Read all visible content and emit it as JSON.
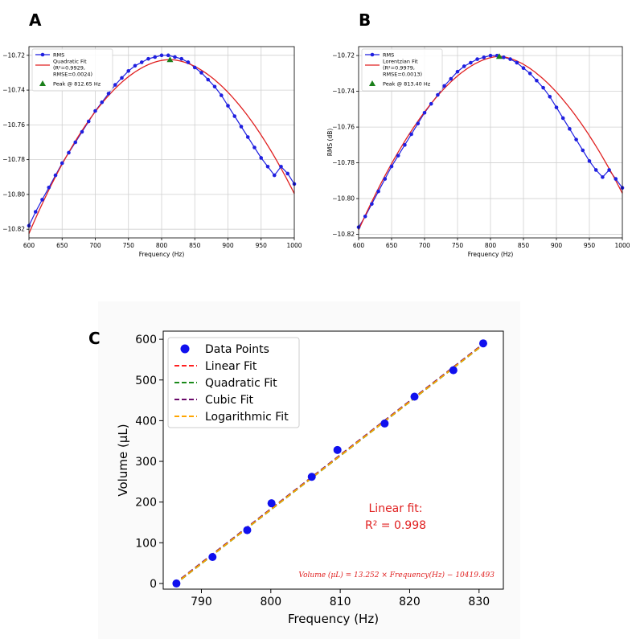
{
  "panels": [
    {
      "letter": "A"
    },
    {
      "letter": "B"
    },
    {
      "letter": "C"
    }
  ],
  "chart_data": [
    {
      "id": "A",
      "type": "line",
      "xlabel": "Frequency (Hz)",
      "ylabel": "",
      "xlim": [
        600,
        1000
      ],
      "ylim": [
        -10.825,
        -10.715
      ],
      "xticks": [
        600,
        650,
        700,
        750,
        800,
        850,
        900,
        950,
        1000
      ],
      "yticks": [
        -10.82,
        -10.8,
        -10.78,
        -10.76,
        -10.74,
        -10.72
      ],
      "grid": true,
      "legend_placement": "top-left",
      "series": [
        {
          "name": "RMS",
          "kind": "line-markers",
          "color": "#1f1fe0",
          "x": [
            600,
            610,
            620,
            630,
            640,
            650,
            660,
            670,
            680,
            690,
            700,
            710,
            720,
            730,
            740,
            750,
            760,
            770,
            780,
            790,
            800,
            810,
            820,
            830,
            840,
            850,
            860,
            870,
            880,
            890,
            900,
            910,
            920,
            930,
            940,
            950,
            960,
            970,
            980,
            990,
            1000
          ],
          "y": [
            -10.818,
            -10.81,
            -10.803,
            -10.796,
            -10.789,
            -10.782,
            -10.776,
            -10.77,
            -10.764,
            -10.758,
            -10.752,
            -10.747,
            -10.742,
            -10.737,
            -10.733,
            -10.729,
            -10.726,
            -10.724,
            -10.722,
            -10.721,
            -10.72,
            -10.72,
            -10.721,
            -10.722,
            -10.724,
            -10.727,
            -10.73,
            -10.734,
            -10.738,
            -10.743,
            -10.749,
            -10.755,
            -10.761,
            -10.767,
            -10.773,
            -10.779,
            -10.784,
            -10.789,
            -10.784,
            -10.788,
            -10.794
          ]
        },
        {
          "name": "Quadratic Fit\n(R²=0.9929,\nRMSE=0.0024)",
          "kind": "curve",
          "color": "#e02020",
          "peak_x": 812.65,
          "peak_y": -10.7225,
          "y_at_600": -10.8225,
          "y_at_1000": -10.7995
        },
        {
          "name": "Peak @ 812.65 Hz",
          "kind": "marker",
          "color": "#1a7f1a",
          "x": [
            812.65
          ],
          "y": [
            -10.7225
          ]
        }
      ]
    },
    {
      "id": "B",
      "type": "line",
      "xlabel": "Frequency (Hz)",
      "ylabel": "RMS (dB)",
      "xlim": [
        600,
        1000
      ],
      "ylim": [
        -10.822,
        -10.715
      ],
      "xticks": [
        600,
        650,
        700,
        750,
        800,
        850,
        900,
        950,
        1000
      ],
      "yticks": [
        -10.82,
        -10.8,
        -10.78,
        -10.76,
        -10.74,
        -10.72
      ],
      "grid": true,
      "legend_placement": "top-left",
      "series": [
        {
          "name": "RMS",
          "kind": "line-markers",
          "color": "#1f1fe0",
          "x": [
            600,
            610,
            620,
            630,
            640,
            650,
            660,
            670,
            680,
            690,
            700,
            710,
            720,
            730,
            740,
            750,
            760,
            770,
            780,
            790,
            800,
            810,
            820,
            830,
            840,
            850,
            860,
            870,
            880,
            890,
            900,
            910,
            920,
            930,
            940,
            950,
            960,
            970,
            980,
            990,
            1000
          ],
          "y": [
            -10.816,
            -10.81,
            -10.803,
            -10.796,
            -10.789,
            -10.782,
            -10.776,
            -10.77,
            -10.764,
            -10.758,
            -10.752,
            -10.747,
            -10.742,
            -10.737,
            -10.733,
            -10.729,
            -10.726,
            -10.724,
            -10.722,
            -10.721,
            -10.72,
            -10.72,
            -10.721,
            -10.722,
            -10.724,
            -10.727,
            -10.73,
            -10.734,
            -10.738,
            -10.743,
            -10.749,
            -10.755,
            -10.761,
            -10.767,
            -10.773,
            -10.779,
            -10.784,
            -10.788,
            -10.784,
            -10.789,
            -10.794
          ]
        },
        {
          "name": "Lorentzian Fit\n(R²=0.9979,\nRMSE=0.0013)",
          "kind": "curve",
          "color": "#e02020",
          "peak_x": 813.4,
          "peak_y": -10.7205,
          "y_at_600": -10.8175,
          "y_at_1000": -10.797
        },
        {
          "name": "Peak @ 813.40 Hz",
          "kind": "marker",
          "color": "#1a7f1a",
          "x": [
            813.4
          ],
          "y": [
            -10.7205
          ]
        }
      ]
    },
    {
      "id": "C",
      "type": "scatter",
      "xlabel": "Frequency (Hz)",
      "ylabel": "Volume (µL)",
      "xlim": [
        784.5,
        833.5
      ],
      "ylim": [
        -14,
        620
      ],
      "xticks": [
        790,
        800,
        810,
        820,
        830
      ],
      "yticks": [
        0,
        100,
        200,
        300,
        400,
        500,
        600
      ],
      "grid": false,
      "legend_placement": "top-left",
      "series": [
        {
          "name": "Data Points",
          "kind": "scatter",
          "color": "#1010ee",
          "x": [
            786.4,
            791.6,
            796.6,
            800.1,
            805.9,
            809.6,
            816.4,
            820.7,
            826.3,
            830.6
          ],
          "y": [
            0,
            65,
            131,
            197,
            262,
            328,
            393,
            459,
            524,
            590
          ]
        },
        {
          "name": "Linear Fit",
          "kind": "dashed",
          "color": "#ff2020",
          "slope": 13.252,
          "intercept": -10419.493
        },
        {
          "name": "Quadratic Fit",
          "kind": "dashed",
          "color": "#1a8a1a",
          "slope": 13.252,
          "intercept": -10419.493
        },
        {
          "name": "Cubic Fit",
          "kind": "dashed",
          "color": "#6a0a6a",
          "slope": 13.252,
          "intercept": -10419.493
        },
        {
          "name": "Logarithmic Fit",
          "kind": "dashed",
          "color": "#ffa500",
          "slope": 13.252,
          "intercept": -10419.493
        }
      ],
      "annotations": {
        "linear_fit_line1": "Linear fit:",
        "linear_fit_line2": "R² = 0.998",
        "equation": "Volume (μL) = 13.252 × Frequency(Hz) − 10419.493",
        "color": "#e02020"
      }
    }
  ]
}
